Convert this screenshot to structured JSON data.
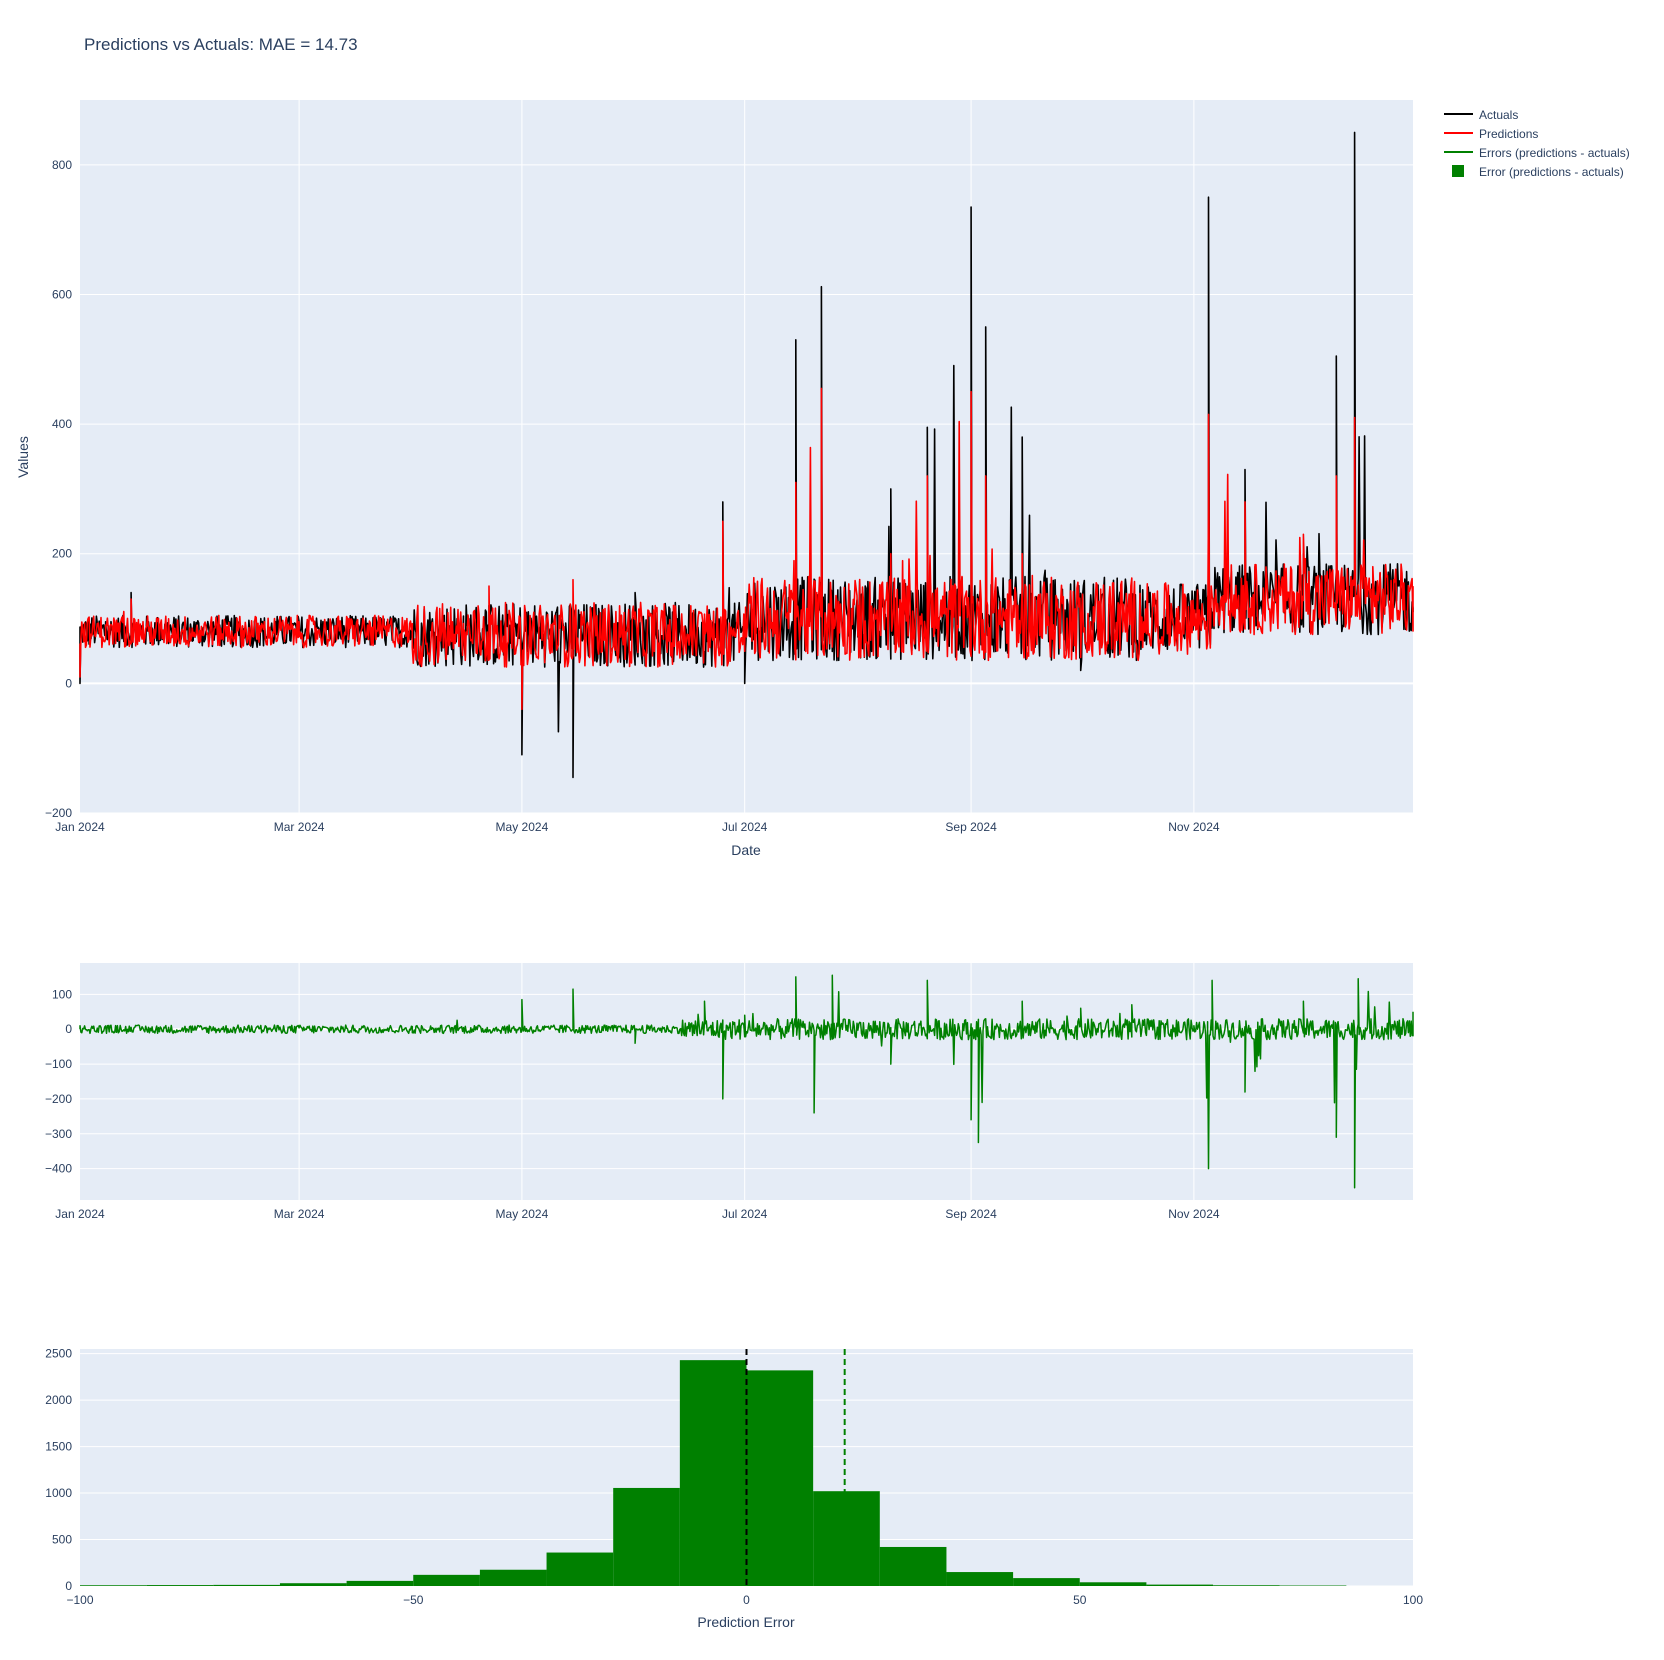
{
  "title": "Predictions vs Actuals: MAE = 14.73",
  "colors": {
    "plot_bg": "#e5ecf6",
    "grid": "#ffffff",
    "text": "#2a3f5f",
    "actuals": "#000000",
    "predictions": "#ff0000",
    "errors": "#008000"
  },
  "legend": {
    "placement": "top-right, outside plot",
    "items": [
      {
        "label": "Actuals",
        "color": "#000000",
        "symbol": "line"
      },
      {
        "label": "Predictions",
        "color": "#ff0000",
        "symbol": "line"
      },
      {
        "label": "Errors (predictions - actuals)",
        "color": "#008000",
        "symbol": "line"
      },
      {
        "label": "Error (predictions - actuals)",
        "color": "#008000",
        "symbol": "square"
      }
    ]
  },
  "chart_data": [
    {
      "type": "line",
      "xlabel": "Date",
      "ylabel": "Values",
      "xlim": [
        "2024-01-01",
        "2024-12-31"
      ],
      "ylim": [
        -200,
        900
      ],
      "x_ticks": [
        "Jan 2024",
        "Mar 2024",
        "May 2024",
        "Jul 2024",
        "Sep 2024",
        "Nov 2024"
      ],
      "y_ticks": [
        "−200",
        "0",
        "200",
        "400",
        "600",
        "800"
      ],
      "grid": true,
      "series": [
        {
          "name": "Actuals",
          "color": "#000000",
          "points": [
            [
              "2024-01-01",
              0
            ],
            [
              "2024-01-08",
              95
            ],
            [
              "2024-01-15",
              140
            ],
            [
              "2024-01-22",
              100
            ],
            [
              "2024-02-01",
              80
            ],
            [
              "2024-02-15",
              70
            ],
            [
              "2024-03-01",
              75
            ],
            [
              "2024-03-15",
              90
            ],
            [
              "2024-04-01",
              60
            ],
            [
              "2024-04-15",
              70
            ],
            [
              "2024-04-22",
              120
            ],
            [
              "2024-05-01",
              -110
            ],
            [
              "2024-05-15",
              -145
            ],
            [
              "2024-06-01",
              140
            ],
            [
              "2024-06-15",
              80
            ],
            [
              "2024-06-25",
              280
            ],
            [
              "2024-07-01",
              0
            ],
            [
              "2024-07-15",
              530
            ],
            [
              "2024-07-22",
              612
            ],
            [
              "2024-08-01",
              100
            ],
            [
              "2024-08-10",
              300
            ],
            [
              "2024-08-20",
              395
            ],
            [
              "2024-09-01",
              735
            ],
            [
              "2024-09-05",
              550
            ],
            [
              "2024-09-15",
              380
            ],
            [
              "2024-10-01",
              20
            ],
            [
              "2024-10-15",
              60
            ],
            [
              "2024-11-01",
              110
            ],
            [
              "2024-11-05",
              750
            ],
            [
              "2024-11-15",
              330
            ],
            [
              "2024-12-01",
              200
            ],
            [
              "2024-12-10",
              505
            ],
            [
              "2024-12-15",
              850
            ],
            [
              "2024-12-20",
              150
            ],
            [
              "2024-12-31",
              110
            ]
          ]
        },
        {
          "name": "Predictions",
          "color": "#ff0000",
          "points": [
            [
              "2024-01-01",
              10
            ],
            [
              "2024-01-08",
              90
            ],
            [
              "2024-01-15",
              130
            ],
            [
              "2024-01-22",
              95
            ],
            [
              "2024-02-01",
              78
            ],
            [
              "2024-02-15",
              72
            ],
            [
              "2024-03-01",
              72
            ],
            [
              "2024-03-15",
              85
            ],
            [
              "2024-04-01",
              55
            ],
            [
              "2024-04-15",
              80
            ],
            [
              "2024-04-22",
              150
            ],
            [
              "2024-05-01",
              -40
            ],
            [
              "2024-05-15",
              160
            ],
            [
              "2024-06-01",
              110
            ],
            [
              "2024-06-15",
              60
            ],
            [
              "2024-06-25",
              250
            ],
            [
              "2024-07-01",
              60
            ],
            [
              "2024-07-15",
              310
            ],
            [
              "2024-07-22",
              455
            ],
            [
              "2024-08-01",
              120
            ],
            [
              "2024-08-10",
              200
            ],
            [
              "2024-08-20",
              320
            ],
            [
              "2024-09-01",
              450
            ],
            [
              "2024-09-05",
              320
            ],
            [
              "2024-09-15",
              200
            ],
            [
              "2024-10-01",
              40
            ],
            [
              "2024-10-15",
              90
            ],
            [
              "2024-11-01",
              100
            ],
            [
              "2024-11-05",
              415
            ],
            [
              "2024-11-15",
              280
            ],
            [
              "2024-12-01",
              230
            ],
            [
              "2024-12-10",
              320
            ],
            [
              "2024-12-15",
              410
            ],
            [
              "2024-12-20",
              180
            ],
            [
              "2024-12-31",
              150
            ]
          ]
        }
      ]
    },
    {
      "type": "line",
      "xlabel": "",
      "ylabel": "",
      "xlim": [
        "2024-01-01",
        "2024-12-31"
      ],
      "ylim": [
        -490,
        190
      ],
      "x_ticks": [
        "Jan 2024",
        "Mar 2024",
        "May 2024",
        "Jul 2024",
        "Sep 2024",
        "Nov 2024"
      ],
      "y_ticks": [
        "−400",
        "−300",
        "−200",
        "−100",
        "0",
        "100"
      ],
      "grid": true,
      "series": [
        {
          "name": "Errors (predictions - actuals)",
          "color": "#008000",
          "points": [
            [
              "2024-01-01",
              10
            ],
            [
              "2024-02-01",
              0
            ],
            [
              "2024-03-01",
              5
            ],
            [
              "2024-04-01",
              -10
            ],
            [
              "2024-05-01",
              85
            ],
            [
              "2024-05-15",
              115
            ],
            [
              "2024-06-01",
              -40
            ],
            [
              "2024-06-20",
              80
            ],
            [
              "2024-06-25",
              -200
            ],
            [
              "2024-07-01",
              40
            ],
            [
              "2024-07-15",
              150
            ],
            [
              "2024-07-20",
              -240
            ],
            [
              "2024-07-25",
              155
            ],
            [
              "2024-08-10",
              -100
            ],
            [
              "2024-08-20",
              140
            ],
            [
              "2024-09-01",
              -260
            ],
            [
              "2024-09-03",
              -325
            ],
            [
              "2024-09-15",
              80
            ],
            [
              "2024-10-01",
              60
            ],
            [
              "2024-10-15",
              70
            ],
            [
              "2024-11-01",
              10
            ],
            [
              "2024-11-05",
              -400
            ],
            [
              "2024-11-06",
              140
            ],
            [
              "2024-11-15",
              -180
            ],
            [
              "2024-12-01",
              80
            ],
            [
              "2024-12-10",
              -310
            ],
            [
              "2024-12-15",
              -455
            ],
            [
              "2024-12-16",
              145
            ],
            [
              "2024-12-31",
              50
            ]
          ]
        }
      ]
    },
    {
      "type": "bar",
      "subtype": "histogram",
      "xlabel": "Prediction Error",
      "ylabel": "",
      "xlim": [
        -100,
        100
      ],
      "ylim": [
        0,
        2550
      ],
      "x_ticks": [
        "−100",
        "−50",
        "0",
        "50",
        "100"
      ],
      "y_ticks": [
        "0",
        "500",
        "1000",
        "1500",
        "2000",
        "2500"
      ],
      "grid": true,
      "bin_width": 10,
      "series": [
        {
          "name": "Error (predictions - actuals)",
          "color": "#008000",
          "bins": [
            {
              "x0": -100,
              "x1": -90,
              "count": 8
            },
            {
              "x0": -90,
              "x1": -80,
              "count": 10
            },
            {
              "x0": -80,
              "x1": -70,
              "count": 12
            },
            {
              "x0": -70,
              "x1": -60,
              "count": 30
            },
            {
              "x0": -60,
              "x1": -50,
              "count": 55
            },
            {
              "x0": -50,
              "x1": -40,
              "count": 120
            },
            {
              "x0": -40,
              "x1": -30,
              "count": 175
            },
            {
              "x0": -30,
              "x1": -20,
              "count": 360
            },
            {
              "x0": -20,
              "x1": -10,
              "count": 1055
            },
            {
              "x0": -10,
              "x1": 0,
              "count": 2430
            },
            {
              "x0": 0,
              "x1": 10,
              "count": 2320
            },
            {
              "x0": 10,
              "x1": 20,
              "count": 1020
            },
            {
              "x0": 20,
              "x1": 30,
              "count": 420
            },
            {
              "x0": 30,
              "x1": 40,
              "count": 150
            },
            {
              "x0": 40,
              "x1": 50,
              "count": 85
            },
            {
              "x0": 50,
              "x1": 60,
              "count": 40
            },
            {
              "x0": 60,
              "x1": 70,
              "count": 15
            },
            {
              "x0": 70,
              "x1": 80,
              "count": 8
            },
            {
              "x0": 80,
              "x1": 90,
              "count": 5
            }
          ]
        }
      ],
      "reference_lines": [
        {
          "x": 0,
          "color": "#000000",
          "style": "dashed"
        },
        {
          "x": 14.73,
          "color": "#008000",
          "style": "dashed"
        }
      ]
    }
  ]
}
